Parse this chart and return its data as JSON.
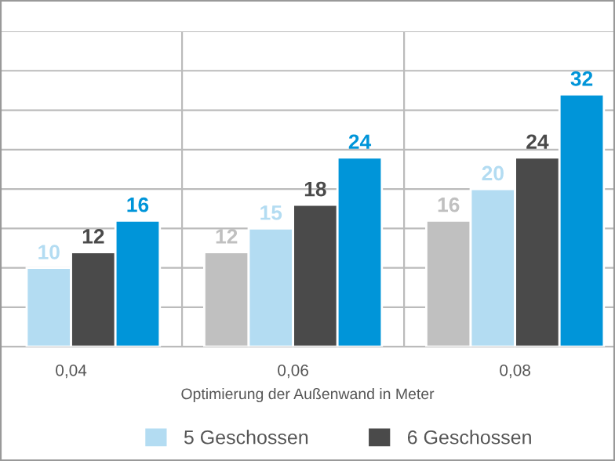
{
  "chart_data": {
    "type": "bar",
    "xlabel": "Optimierung der Außenwand in Meter",
    "categories": [
      "0,04",
      "0,06",
      "0,08"
    ],
    "series": [
      {
        "color": "#c0c0c0",
        "values": [
          null,
          12,
          16
        ]
      },
      {
        "name": "5 Geschossen",
        "color": "#b3dcf2",
        "values": [
          10,
          15,
          20
        ]
      },
      {
        "name": "6 Geschossen",
        "color": "#4a4a4a",
        "values": [
          12,
          18,
          24
        ]
      },
      {
        "color": "#0095d9",
        "values": [
          16,
          24,
          32
        ]
      }
    ],
    "ylim": [
      0,
      40
    ],
    "yticks": [
      {
        "value": 0,
        "label": null
      },
      {
        "value": 5,
        "label": null
      },
      {
        "value": 10,
        "label": null
      },
      {
        "value": 15,
        "label": null
      },
      {
        "value": 20,
        "label": null
      },
      {
        "value": 25,
        "label": null
      },
      {
        "value": 30,
        "label": null
      },
      {
        "value": 35,
        "label": null
      },
      {
        "value": 40,
        "label": null
      }
    ],
    "tick_labels": "x",
    "grid": true,
    "data_labels": true,
    "legend": "bottom"
  }
}
